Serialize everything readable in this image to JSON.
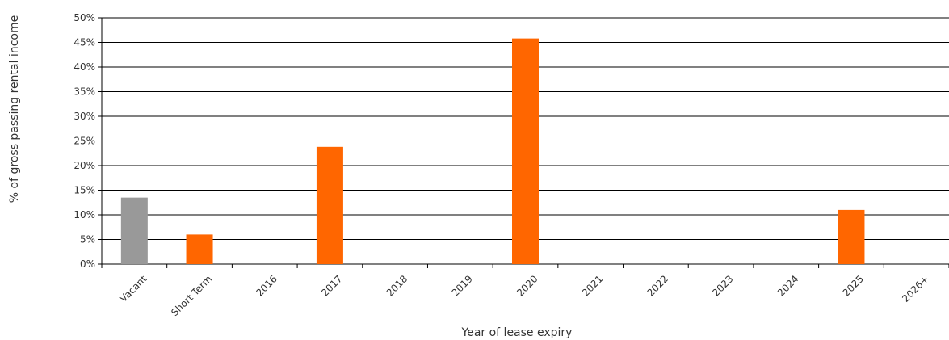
{
  "chart_data": {
    "type": "bar",
    "title": "",
    "xlabel": "Year of lease expiry",
    "ylabel": "% of gross passing rental income",
    "categories": [
      "Vacant",
      "Short Term",
      "2016",
      "2017",
      "2018",
      "2019",
      "2020",
      "2021",
      "2022",
      "2023",
      "2024",
      "2025",
      "2026+"
    ],
    "values": [
      13.5,
      6,
      0,
      23.8,
      0,
      0,
      45.8,
      0,
      0,
      0,
      0,
      11,
      0
    ],
    "bar_colors": [
      "#999999",
      "#FF6600",
      "#FF6600",
      "#FF6600",
      "#FF6600",
      "#FF6600",
      "#FF6600",
      "#FF6600",
      "#FF6600",
      "#FF6600",
      "#FF6600",
      "#FF6600",
      "#FF6600"
    ],
    "ylim": [
      0,
      50
    ],
    "y_ticks": [
      "0%",
      "5%",
      "10%",
      "15%",
      "20%",
      "25%",
      "30%",
      "35%",
      "40%",
      "45%",
      "50%"
    ],
    "grid": true,
    "legend": "none"
  }
}
